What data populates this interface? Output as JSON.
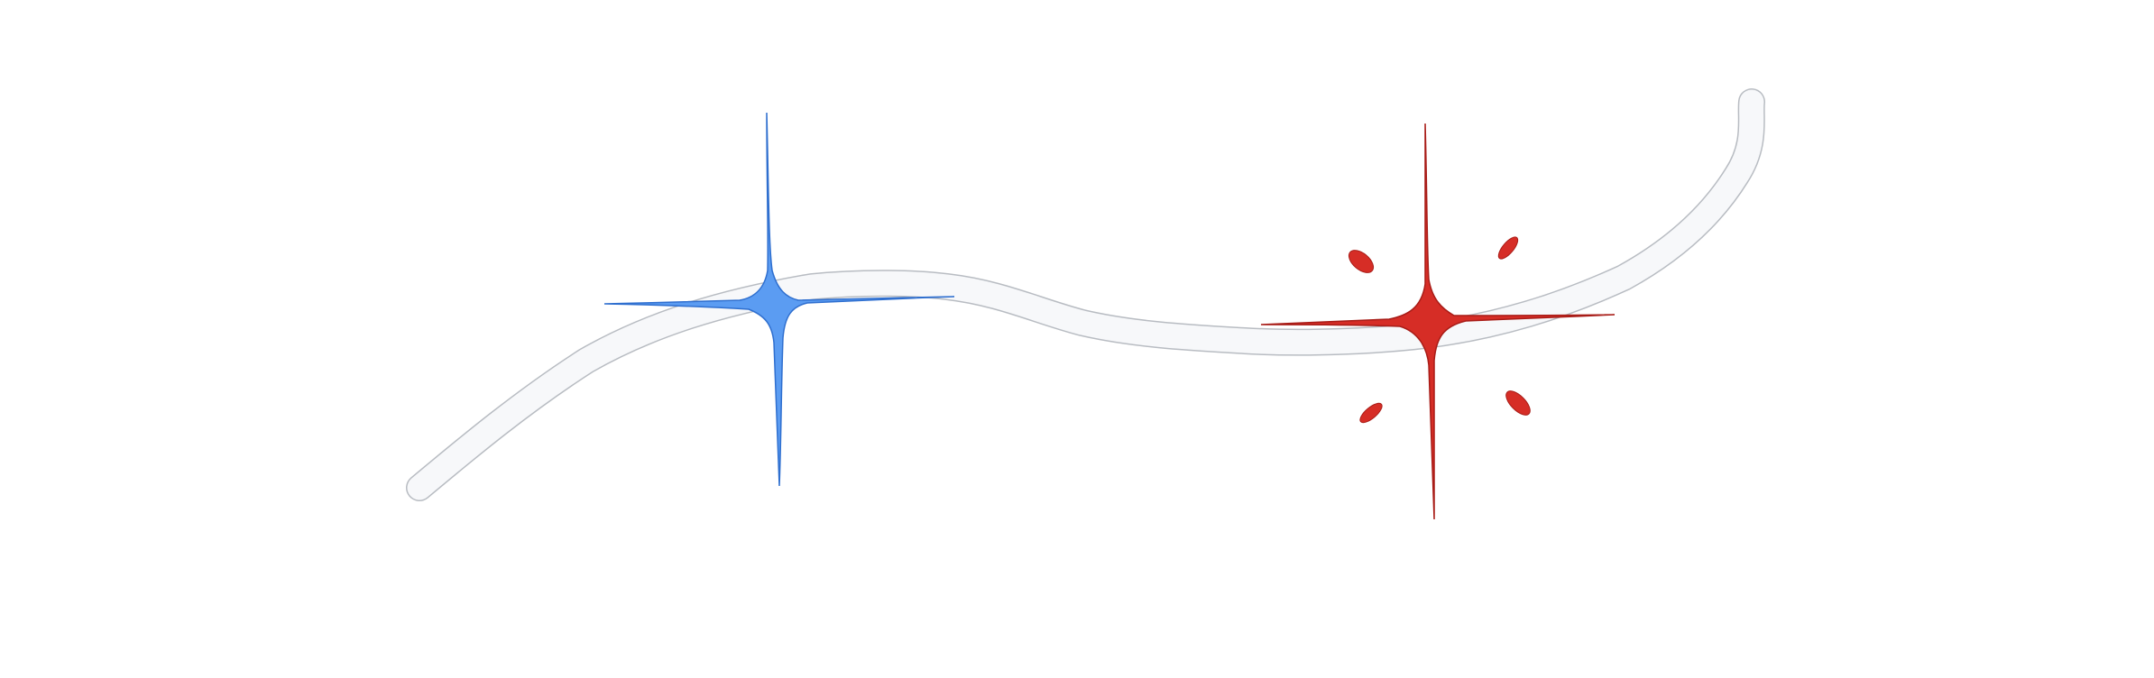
{
  "illustration": {
    "background_color": "#ffffff",
    "ribbon": {
      "fill_color": "#f7f8fa",
      "edge_color": "#b8bcc2"
    },
    "blue_star": {
      "icon": "four-point-star",
      "color": "#5b9cf2",
      "edge_color": "#2f6fcf"
    },
    "red_star": {
      "icon": "four-point-star-with-sparks",
      "color": "#d62d26",
      "edge_color": "#a81c17"
    }
  }
}
